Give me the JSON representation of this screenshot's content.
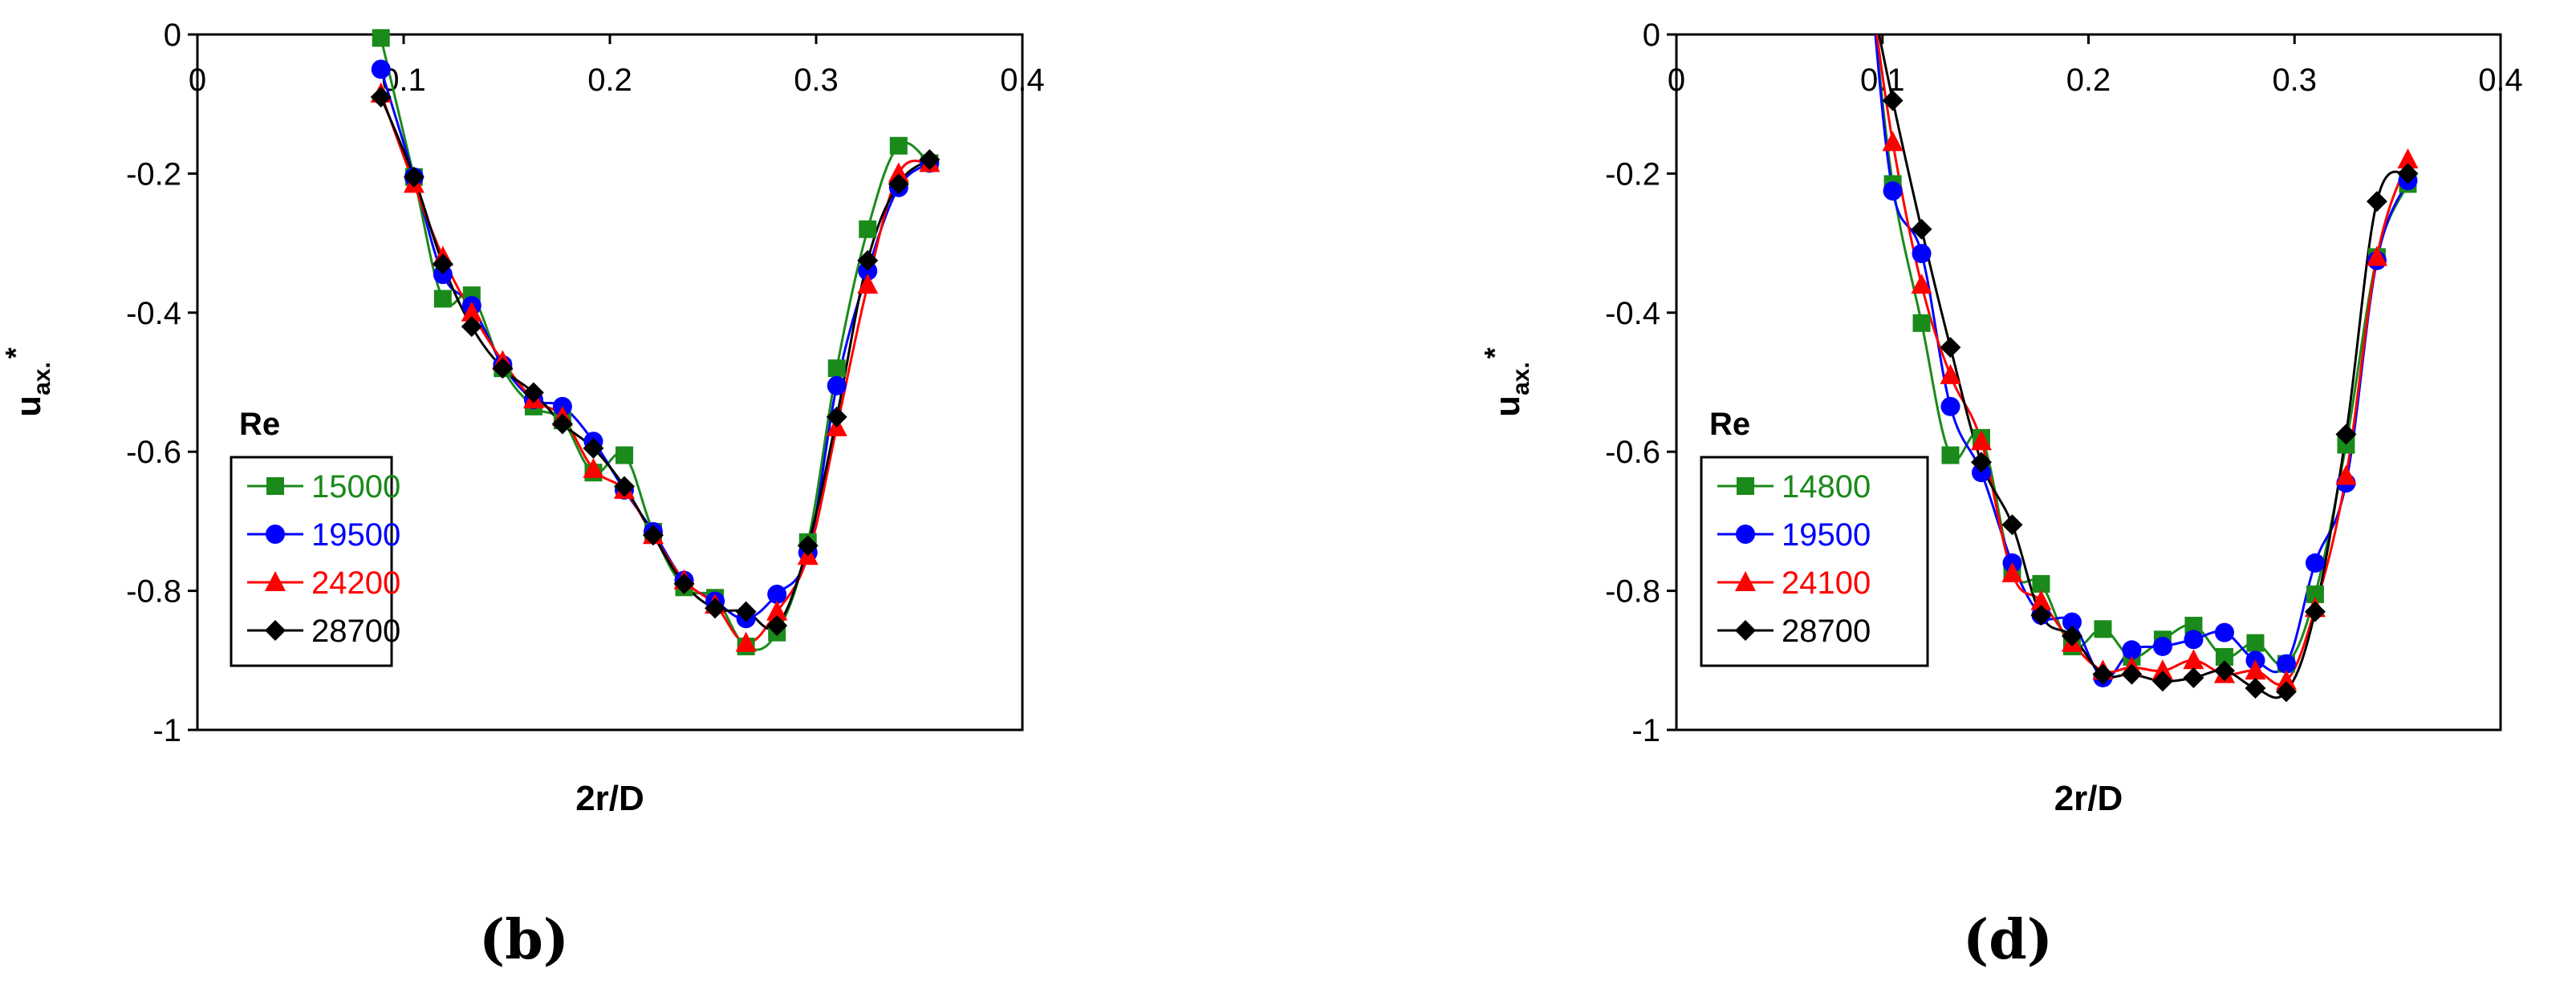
{
  "chart_data": [
    {
      "type": "line",
      "panel": "(b)",
      "title": "",
      "xlabel": "2r/D",
      "ylabel": "u",
      "ylabel_sub": "ax.",
      "ylabel_sup": "*",
      "xlim": [
        0,
        0.4
      ],
      "ylim": [
        -1,
        0
      ],
      "xticks": [
        "0",
        "0.1",
        "0.2",
        "0.3",
        "0.4"
      ],
      "yticks": [
        "0",
        "-0.2",
        "-0.4",
        "-0.6",
        "-0.8",
        "-1"
      ],
      "grid": false,
      "legend": {
        "title": "Re",
        "placement": "lower-left"
      },
      "series": [
        {
          "name": "15000",
          "color": "#1a8a1a",
          "marker": "square",
          "x": [
            0.089,
            0.105,
            0.119,
            0.133,
            0.148,
            0.163,
            0.177,
            0.192,
            0.207,
            0.221,
            0.236,
            0.251,
            0.266,
            0.281,
            0.296,
            0.31,
            0.325,
            0.34,
            0.355
          ],
          "y": [
            -0.005,
            -0.205,
            -0.38,
            -0.375,
            -0.48,
            -0.535,
            -0.555,
            -0.63,
            -0.605,
            -0.715,
            -0.795,
            -0.81,
            -0.88,
            -0.86,
            -0.73,
            -0.48,
            -0.28,
            -0.16,
            -0.185
          ]
        },
        {
          "name": "19500",
          "color": "#0000ff",
          "marker": "circle",
          "x": [
            0.089,
            0.105,
            0.119,
            0.133,
            0.148,
            0.163,
            0.177,
            0.192,
            0.207,
            0.221,
            0.236,
            0.251,
            0.266,
            0.281,
            0.296,
            0.31,
            0.325,
            0.34,
            0.355
          ],
          "y": [
            -0.05,
            -0.205,
            -0.345,
            -0.39,
            -0.475,
            -0.525,
            -0.535,
            -0.585,
            -0.655,
            -0.715,
            -0.785,
            -0.815,
            -0.84,
            -0.805,
            -0.745,
            -0.505,
            -0.34,
            -0.22,
            -0.185
          ]
        },
        {
          "name": "24200",
          "color": "#ff0000",
          "marker": "triangle",
          "x": [
            0.089,
            0.105,
            0.119,
            0.133,
            0.148,
            0.163,
            0.177,
            0.192,
            0.207,
            0.221,
            0.236,
            0.251,
            0.266,
            0.281,
            0.296,
            0.31,
            0.325,
            0.34,
            0.355
          ],
          "y": [
            -0.085,
            -0.215,
            -0.32,
            -0.4,
            -0.47,
            -0.525,
            -0.55,
            -0.625,
            -0.655,
            -0.72,
            -0.785,
            -0.82,
            -0.875,
            -0.83,
            -0.75,
            -0.565,
            -0.36,
            -0.2,
            -0.185
          ]
        },
        {
          "name": "28700",
          "color": "#000000",
          "marker": "diamond",
          "x": [
            0.089,
            0.105,
            0.119,
            0.133,
            0.148,
            0.163,
            0.177,
            0.192,
            0.207,
            0.221,
            0.236,
            0.251,
            0.266,
            0.281,
            0.296,
            0.31,
            0.325,
            0.34,
            0.355
          ],
          "y": [
            -0.09,
            -0.205,
            -0.33,
            -0.42,
            -0.48,
            -0.515,
            -0.56,
            -0.595,
            -0.65,
            -0.72,
            -0.79,
            -0.825,
            -0.83,
            -0.85,
            -0.735,
            -0.55,
            -0.325,
            -0.215,
            -0.18
          ]
        }
      ]
    },
    {
      "type": "line",
      "panel": "(d)",
      "title": "",
      "xlabel": "2r/D",
      "ylabel": "u",
      "ylabel_sub": "ax.",
      "ylabel_sup": "*",
      "xlim": [
        0,
        0.4
      ],
      "ylim": [
        -1,
        0
      ],
      "xticks": [
        "0",
        "0.1",
        "0.2",
        "0.3",
        "0.4"
      ],
      "yticks": [
        "0",
        "-0.2",
        "-0.4",
        "-0.6",
        "-0.8",
        "-1"
      ],
      "grid": false,
      "legend": {
        "title": "Re",
        "placement": "lower-left"
      },
      "series": [
        {
          "name": "14800",
          "color": "#1a8a1a",
          "marker": "square",
          "x": [
            0.095,
            0.105,
            0.119,
            0.133,
            0.148,
            0.163,
            0.177,
            0.192,
            0.207,
            0.221,
            0.236,
            0.251,
            0.266,
            0.281,
            0.296,
            0.31,
            0.325,
            0.34,
            0.355
          ],
          "y": [
            0.05,
            -0.215,
            -0.415,
            -0.605,
            -0.58,
            -0.77,
            -0.79,
            -0.88,
            -0.855,
            -0.895,
            -0.87,
            -0.85,
            -0.895,
            -0.875,
            -0.905,
            -0.805,
            -0.59,
            -0.32,
            -0.215
          ]
        },
        {
          "name": "19500",
          "color": "#0000ff",
          "marker": "circle",
          "x": [
            0.095,
            0.105,
            0.119,
            0.133,
            0.148,
            0.163,
            0.177,
            0.192,
            0.207,
            0.221,
            0.236,
            0.251,
            0.266,
            0.281,
            0.296,
            0.31,
            0.325,
            0.34,
            0.355
          ],
          "y": [
            0.05,
            -0.225,
            -0.315,
            -0.535,
            -0.63,
            -0.76,
            -0.835,
            -0.845,
            -0.925,
            -0.885,
            -0.88,
            -0.87,
            -0.86,
            -0.9,
            -0.905,
            -0.76,
            -0.645,
            -0.325,
            -0.21
          ]
        },
        {
          "name": "24100",
          "color": "#ff0000",
          "marker": "triangle",
          "x": [
            0.095,
            0.105,
            0.119,
            0.133,
            0.148,
            0.163,
            0.177,
            0.192,
            0.207,
            0.221,
            0.236,
            0.251,
            0.266,
            0.281,
            0.296,
            0.31,
            0.325,
            0.34,
            0.355
          ],
          "y": [
            0.05,
            -0.155,
            -0.36,
            -0.49,
            -0.585,
            -0.775,
            -0.815,
            -0.875,
            -0.915,
            -0.91,
            -0.915,
            -0.9,
            -0.92,
            -0.915,
            -0.93,
            -0.825,
            -0.635,
            -0.32,
            -0.18
          ]
        },
        {
          "name": "28700",
          "color": "#000000",
          "marker": "diamond",
          "x": [
            0.095,
            0.105,
            0.119,
            0.133,
            0.148,
            0.163,
            0.177,
            0.192,
            0.207,
            0.221,
            0.236,
            0.251,
            0.266,
            0.281,
            0.296,
            0.31,
            0.325,
            0.34,
            0.355
          ],
          "y": [
            0.05,
            -0.095,
            -0.28,
            -0.45,
            -0.615,
            -0.705,
            -0.835,
            -0.865,
            -0.92,
            -0.92,
            -0.93,
            -0.925,
            -0.915,
            -0.94,
            -0.945,
            -0.83,
            -0.575,
            -0.24,
            -0.2
          ]
        }
      ]
    }
  ]
}
